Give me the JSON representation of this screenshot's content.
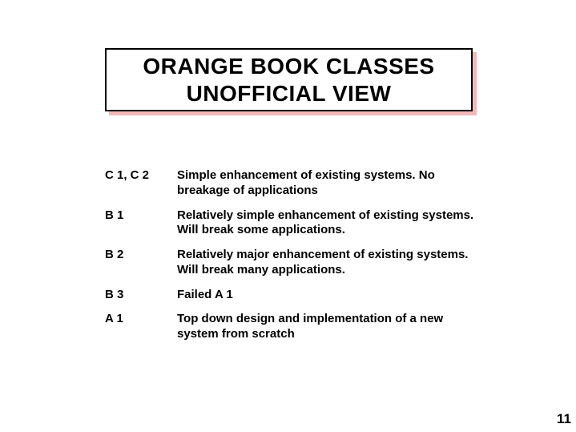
{
  "slide": {
    "title_line1": "ORANGE BOOK CLASSES",
    "title_line2": "UNOFFICIAL VIEW",
    "title_box": {
      "border_color": "#000000",
      "shadow_color": "#f2b8b8",
      "background_color": "#ffffff",
      "title_fontsize": 28,
      "title_fontweight": "bold"
    },
    "rows": [
      {
        "label": "C 1, C 2",
        "desc": "Simple enhancement of existing systems. No breakage of applications"
      },
      {
        "label": "B 1",
        "desc": "Relatively simple enhancement of existing systems. Will break some applications."
      },
      {
        "label": "B 2",
        "desc": "Relatively major enhancement of existing systems. Will break many applications."
      },
      {
        "label": "B 3",
        "desc": "Failed A 1"
      },
      {
        "label": "A 1",
        "desc": "Top down design and implementation of a new system from scratch"
      }
    ],
    "body_fontsize": 15,
    "body_fontweight": "bold",
    "text_color": "#000000",
    "background_color": "#ffffff",
    "page_number": "11"
  }
}
